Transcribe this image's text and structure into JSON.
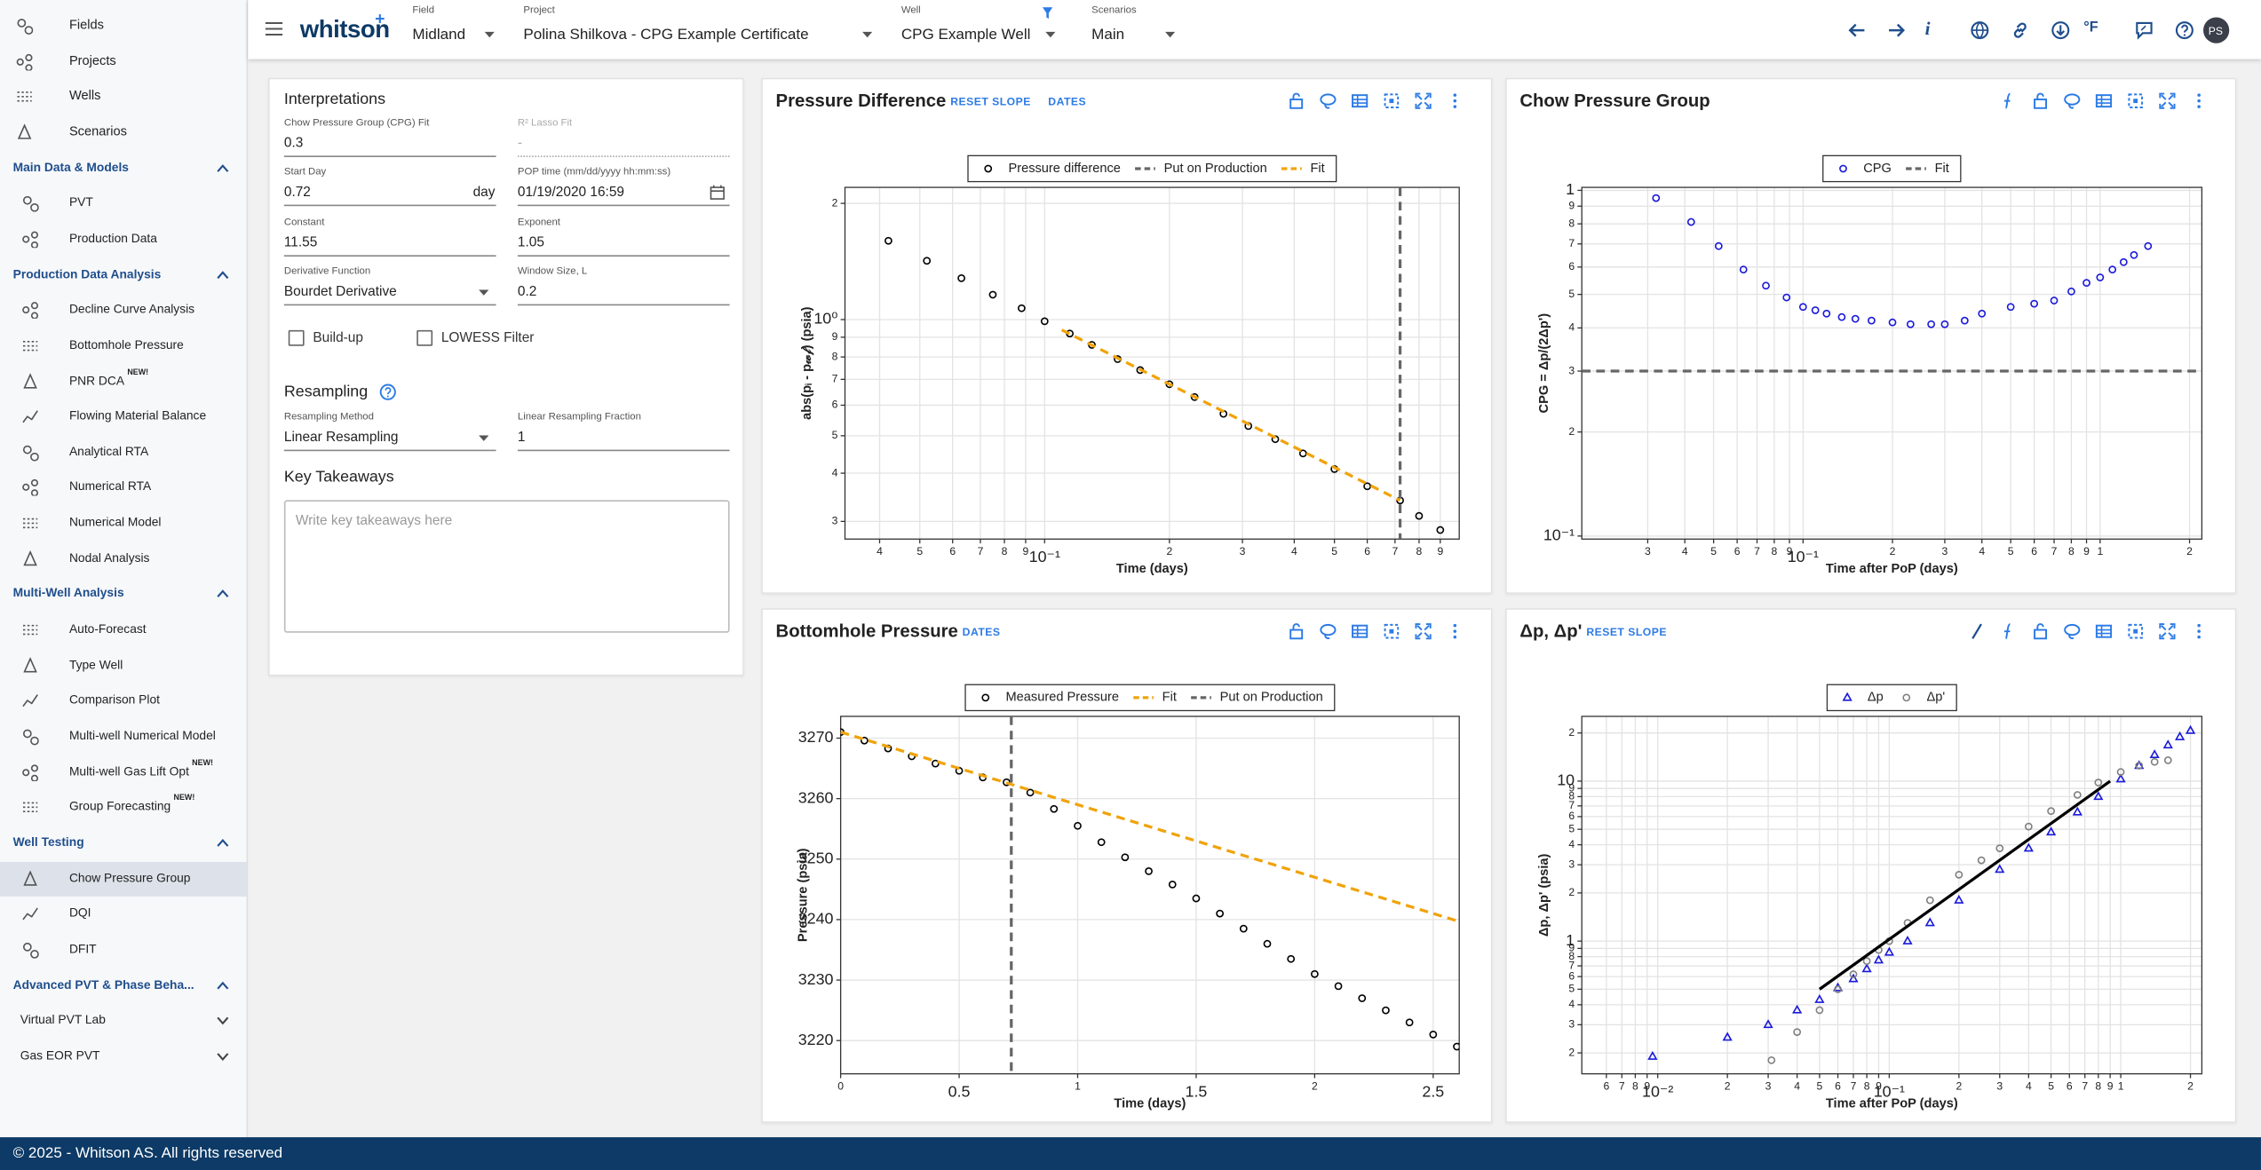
{
  "header": {
    "logo": "whitson",
    "logo_mark": "+",
    "selectors": [
      {
        "label": "Field",
        "value": "Midland"
      },
      {
        "label": "Project",
        "value": "Polina Shilkova - CPG Example Certificate"
      },
      {
        "label": "Well",
        "value": "CPG Example Well"
      },
      {
        "label": "Scenarios",
        "value": "Main"
      }
    ],
    "info_button": "i",
    "unit_button": "°F",
    "avatar": "PS"
  },
  "sidebar": {
    "top": [
      "Fields",
      "Projects",
      "Wells",
      "Scenarios"
    ],
    "sections": [
      {
        "title": "Main Data & Models",
        "items": [
          {
            "label": "PVT"
          },
          {
            "label": "Production Data"
          }
        ]
      },
      {
        "title": "Production Data Analysis",
        "items": [
          {
            "label": "Decline Curve Analysis"
          },
          {
            "label": "Bottomhole Pressure"
          },
          {
            "label": "PNR DCA",
            "badge": "NEW!"
          },
          {
            "label": "Flowing Material Balance"
          },
          {
            "label": "Analytical RTA"
          },
          {
            "label": "Numerical RTA"
          },
          {
            "label": "Numerical Model"
          },
          {
            "label": "Nodal Analysis"
          }
        ]
      },
      {
        "title": "Multi-Well Analysis",
        "items": [
          {
            "label": "Auto-Forecast"
          },
          {
            "label": "Type Well"
          },
          {
            "label": "Comparison Plot"
          },
          {
            "label": "Multi-well Numerical Model"
          },
          {
            "label": "Multi-well Gas Lift Opt",
            "badge": "NEW!"
          },
          {
            "label": "Group Forecasting",
            "badge": "NEW!"
          }
        ]
      },
      {
        "title": "Well Testing",
        "items": [
          {
            "label": "Chow Pressure Group",
            "selected": true
          },
          {
            "label": "DQI"
          },
          {
            "label": "DFIT"
          }
        ]
      },
      {
        "title": "Advanced PVT & Phase Beha...",
        "items": [
          {
            "label": "Virtual PVT Lab",
            "collapsible": true
          },
          {
            "label": "Gas EOR PVT",
            "collapsible": true
          }
        ]
      }
    ]
  },
  "interpretations": {
    "title": "Interpretations",
    "fields": [
      {
        "label": "Chow Pressure Group (CPG) Fit",
        "value": "0.3"
      },
      {
        "label": "R² Lasso Fit",
        "value": "-",
        "disabled": true
      },
      {
        "label": "Start Day",
        "value": "0.72",
        "unit": "day"
      },
      {
        "label": "POP time (mm/dd/yyyy hh:mm:ss)",
        "value": "01/19/2020 16:59",
        "calendar": true
      },
      {
        "label": "Constant",
        "value": "11.55"
      },
      {
        "label": "Exponent",
        "value": "1.05"
      },
      {
        "label": "Derivative Function",
        "value": "Bourdet Derivative",
        "dropdown": true
      },
      {
        "label": "Window Size, L",
        "value": "0.2"
      }
    ],
    "checkboxes": [
      "Build-up",
      "LOWESS Filter"
    ],
    "resampling": {
      "title": "Resampling",
      "fields": [
        {
          "label": "Resampling Method",
          "value": "Linear Resampling",
          "dropdown": true
        },
        {
          "label": "Linear Resampling Fraction",
          "value": "1"
        }
      ]
    },
    "takeaways": {
      "title": "Key Takeaways",
      "placeholder": "Write key takeaways here"
    }
  },
  "charts": [
    {
      "type": "scatter",
      "title": "Pressure Difference",
      "buttons": [
        "RESET SLOPE",
        "DATES"
      ],
      "xlabel": "Time (days)",
      "ylabel": "abs(pᵢ - p𝓌𝒻) (psia)",
      "xlog": true,
      "ylog": true,
      "grid": true,
      "xlim": [
        0.033,
        1.0
      ],
      "ylim": [
        0.27,
        2.2
      ],
      "xticks": [
        {
          "value": 0.04,
          "label": "4"
        },
        {
          "value": 0.05,
          "label": "5"
        },
        {
          "value": 0.06,
          "label": "6"
        },
        {
          "value": 0.07,
          "label": "7"
        },
        {
          "value": 0.08,
          "label": "8"
        },
        {
          "value": 0.09,
          "label": "9"
        },
        {
          "value": 0.1,
          "label": "10⁻¹"
        },
        {
          "value": 0.2,
          "label": "2"
        },
        {
          "value": 0.3,
          "label": "3"
        },
        {
          "value": 0.4,
          "label": "4"
        },
        {
          "value": 0.5,
          "label": "5"
        },
        {
          "value": 0.6,
          "label": "6"
        },
        {
          "value": 0.7,
          "label": "7"
        },
        {
          "value": 0.8,
          "label": "8"
        },
        {
          "value": 0.9,
          "label": "9"
        }
      ],
      "yticks": [
        {
          "value": 0.3,
          "label": "3"
        },
        {
          "value": 0.4,
          "label": "4"
        },
        {
          "value": 0.5,
          "label": "5"
        },
        {
          "value": 0.6,
          "label": "6"
        },
        {
          "value": 0.7,
          "label": "7"
        },
        {
          "value": 0.8,
          "label": "8"
        },
        {
          "value": 0.9,
          "label": "9"
        },
        {
          "value": 1,
          "label": "10⁰"
        },
        2
      ],
      "series": [
        {
          "name": "Pressure difference",
          "color": "#000000",
          "style": "markers",
          "marker": "circle",
          "x": [
            0.042,
            0.052,
            0.063,
            0.075,
            0.088,
            0.1,
            0.115,
            0.13,
            0.15,
            0.17,
            0.2,
            0.23,
            0.27,
            0.31,
            0.36,
            0.42,
            0.5,
            0.6,
            0.72,
            0.8,
            0.9
          ],
          "values": [
            1.6,
            1.42,
            1.28,
            1.16,
            1.07,
            0.99,
            0.92,
            0.86,
            0.79,
            0.74,
            0.68,
            0.63,
            0.57,
            0.53,
            0.49,
            0.45,
            0.41,
            0.37,
            0.34,
            0.31,
            0.285
          ]
        },
        {
          "name": "Put on Production",
          "color": "#666666",
          "style": "vline",
          "x": 0.72
        },
        {
          "name": "Fit",
          "color": "#f0a30a",
          "style": "line",
          "dash": true,
          "x": [
            0.11,
            0.72
          ],
          "values": [
            0.94,
            0.34
          ]
        }
      ]
    },
    {
      "type": "scatter",
      "title": "Chow Pressure Group",
      "buttons": [],
      "xlabel": "Time after PoP (days)",
      "ylabel": "CPG = Δp/(2Δp')",
      "xlog": true,
      "ylog": true,
      "grid": true,
      "xlim": [
        0.018,
        2.2
      ],
      "ylim": [
        0.098,
        1.02
      ],
      "xticks": [
        {
          "value": 0.03,
          "label": "3"
        },
        {
          "value": 0.04,
          "label": "4"
        },
        {
          "value": 0.05,
          "label": "5"
        },
        {
          "value": 0.06,
          "label": "6"
        },
        {
          "value": 0.07,
          "label": "7"
        },
        {
          "value": 0.08,
          "label": "8"
        },
        {
          "value": 0.09,
          "label": "9"
        },
        {
          "value": 0.1,
          "label": "10⁻¹"
        },
        {
          "value": 0.2,
          "label": "2"
        },
        {
          "value": 0.3,
          "label": "3"
        },
        {
          "value": 0.4,
          "label": "4"
        },
        {
          "value": 0.5,
          "label": "5"
        },
        {
          "value": 0.6,
          "label": "6"
        },
        {
          "value": 0.7,
          "label": "7"
        },
        {
          "value": 0.8,
          "label": "8"
        },
        {
          "value": 0.9,
          "label": "9"
        },
        1,
        2
      ],
      "yticks": [
        {
          "value": 0.1,
          "label": "10⁻¹"
        },
        {
          "value": 0.2,
          "label": "2"
        },
        {
          "value": 0.3,
          "label": "3"
        },
        {
          "value": 0.4,
          "label": "4"
        },
        {
          "value": 0.5,
          "label": "5"
        },
        {
          "value": 0.6,
          "label": "6"
        },
        {
          "value": 0.7,
          "label": "7"
        },
        {
          "value": 0.8,
          "label": "8"
        },
        {
          "value": 0.9,
          "label": "9"
        },
        1
      ],
      "series": [
        {
          "name": "CPG",
          "color": "#1a1adb",
          "style": "markers",
          "marker": "circle",
          "x": [
            0.032,
            0.042,
            0.052,
            0.063,
            0.075,
            0.088,
            0.1,
            0.11,
            0.12,
            0.135,
            0.15,
            0.17,
            0.2,
            0.23,
            0.27,
            0.3,
            0.35,
            0.4,
            0.5,
            0.6,
            0.7,
            0.8,
            0.9,
            1.0,
            1.1,
            1.2,
            1.3,
            1.45
          ],
          "values": [
            0.95,
            0.81,
            0.69,
            0.59,
            0.53,
            0.49,
            0.46,
            0.45,
            0.44,
            0.43,
            0.425,
            0.42,
            0.415,
            0.41,
            0.41,
            0.41,
            0.42,
            0.44,
            0.46,
            0.47,
            0.48,
            0.51,
            0.54,
            0.56,
            0.59,
            0.62,
            0.65,
            0.69
          ]
        },
        {
          "name": "Fit",
          "color": "#666666",
          "style": "hline",
          "value": 0.3
        }
      ]
    },
    {
      "type": "scatter",
      "title": "Bottomhole Pressure",
      "buttons": [
        "DATES"
      ],
      "xlabel": "Time (days)",
      "ylabel": "Pressure (psia)",
      "xlog": false,
      "ylog": false,
      "grid": true,
      "xlim": [
        0,
        2.61
      ],
      "ylim": [
        3214.5,
        3273.6
      ],
      "xticks": [
        0,
        0.5,
        1,
        1.5,
        2,
        2.5
      ],
      "yticks": [
        3220,
        3230,
        3240,
        3250,
        3260,
        3270
      ],
      "series": [
        {
          "name": "Measured Pressure",
          "color": "#000000",
          "style": "markers",
          "marker": "circle",
          "x": [
            0,
            0.1,
            0.2,
            0.3,
            0.4,
            0.5,
            0.6,
            0.7,
            0.8,
            0.9,
            1.0,
            1.1,
            1.2,
            1.3,
            1.4,
            1.5,
            1.6,
            1.7,
            1.8,
            1.9,
            2.0,
            2.1,
            2.2,
            2.3,
            2.4,
            2.5,
            2.6
          ],
          "values": [
            3271,
            3269.6,
            3268.3,
            3267,
            3265.8,
            3264.6,
            3263.5,
            3262.7,
            3261,
            3258.3,
            3255.5,
            3252.8,
            3250.3,
            3248,
            3245.8,
            3243.5,
            3241,
            3238.5,
            3236,
            3233.5,
            3231,
            3229,
            3227,
            3225,
            3223,
            3221,
            3219
          ]
        },
        {
          "name": "Fit",
          "color": "#f0a30a",
          "style": "line",
          "dash": true,
          "x": [
            0,
            2.6
          ],
          "values": [
            3271,
            3239.8
          ]
        },
        {
          "name": "Put on Production",
          "color": "#666666",
          "style": "vline",
          "x": 0.72
        }
      ]
    },
    {
      "type": "scatter",
      "title": "Δp, Δp'",
      "buttons": [
        "RESET SLOPE"
      ],
      "xlabel": "Time after PoP (days)",
      "ylabel": "Δp, Δp' (psia)",
      "xlog": true,
      "ylog": true,
      "grid": true,
      "xlim": [
        0.0047,
        2.24
      ],
      "ylim": [
        0.148,
        25.4
      ],
      "xticks": [
        {
          "value": 0.006,
          "label": "6"
        },
        {
          "value": 0.007,
          "label": "7"
        },
        {
          "value": 0.008,
          "label": "8"
        },
        {
          "value": 0.009,
          "label": "9"
        },
        {
          "value": 0.01,
          "label": "10⁻²"
        },
        {
          "value": 0.02,
          "label": "2"
        },
        {
          "value": 0.03,
          "label": "3"
        },
        {
          "value": 0.04,
          "label": "4"
        },
        {
          "value": 0.05,
          "label": "5"
        },
        {
          "value": 0.06,
          "label": "6"
        },
        {
          "value": 0.07,
          "label": "7"
        },
        {
          "value": 0.08,
          "label": "8"
        },
        {
          "value": 0.09,
          "label": "9"
        },
        {
          "value": 0.1,
          "label": "10⁻¹"
        },
        {
          "value": 0.2,
          "label": "2"
        },
        {
          "value": 0.3,
          "label": "3"
        },
        {
          "value": 0.4,
          "label": "4"
        },
        {
          "value": 0.5,
          "label": "5"
        },
        {
          "value": 0.6,
          "label": "6"
        },
        {
          "value": 0.7,
          "label": "7"
        },
        {
          "value": 0.8,
          "label": "8"
        },
        {
          "value": 0.9,
          "label": "9"
        },
        1,
        2
      ],
      "yticks": [
        {
          "value": 0.2,
          "label": "2"
        },
        {
          "value": 0.3,
          "label": "3"
        },
        {
          "value": 0.4,
          "label": "4"
        },
        {
          "value": 0.5,
          "label": "5"
        },
        {
          "value": 0.6,
          "label": "6"
        },
        {
          "value": 0.7,
          "label": "7"
        },
        {
          "value": 0.8,
          "label": "8"
        },
        {
          "value": 0.9,
          "label": "9"
        },
        1,
        2,
        3,
        4,
        5,
        6,
        7,
        8,
        9,
        10,
        {
          "value": 20,
          "label": "2"
        }
      ],
      "series": [
        {
          "name": "Δp",
          "color": "#1a1adb",
          "style": "markers",
          "marker": "triangle",
          "x": [
            0.0095,
            0.02,
            0.03,
            0.04,
            0.05,
            0.06,
            0.07,
            0.08,
            0.09,
            0.1,
            0.12,
            0.15,
            0.2,
            0.3,
            0.4,
            0.5,
            0.65,
            0.8,
            1.0,
            1.2,
            1.4,
            1.6,
            1.8,
            2.0
          ],
          "values": [
            0.19,
            0.25,
            0.3,
            0.37,
            0.43,
            0.51,
            0.58,
            0.67,
            0.76,
            0.85,
            1.0,
            1.3,
            1.8,
            2.8,
            3.8,
            4.8,
            6.4,
            8.0,
            10.3,
            12.5,
            14.6,
            16.8,
            18.9,
            20.7
          ]
        },
        {
          "name": "Δp'",
          "color": "#808080",
          "style": "markers",
          "marker": "circle",
          "x": [
            0.031,
            0.04,
            0.05,
            0.06,
            0.07,
            0.08,
            0.09,
            0.1,
            0.12,
            0.15,
            0.2,
            0.25,
            0.3,
            0.4,
            0.5,
            0.65,
            0.8,
            1.0,
            1.2,
            1.4,
            1.6
          ],
          "values": [
            0.18,
            0.27,
            0.37,
            0.5,
            0.62,
            0.75,
            0.88,
            1.0,
            1.3,
            1.8,
            2.6,
            3.2,
            3.8,
            5.2,
            6.5,
            8.2,
            9.8,
            11.4,
            12.5,
            13.2,
            13.5
          ]
        },
        {
          "color": "#000000",
          "style": "line",
          "dash": false,
          "x": [
            0.05,
            0.9
          ],
          "values": [
            0.5,
            10
          ]
        }
      ]
    }
  ],
  "footer": "© 2025 - Whitson AS. All rights reserved"
}
